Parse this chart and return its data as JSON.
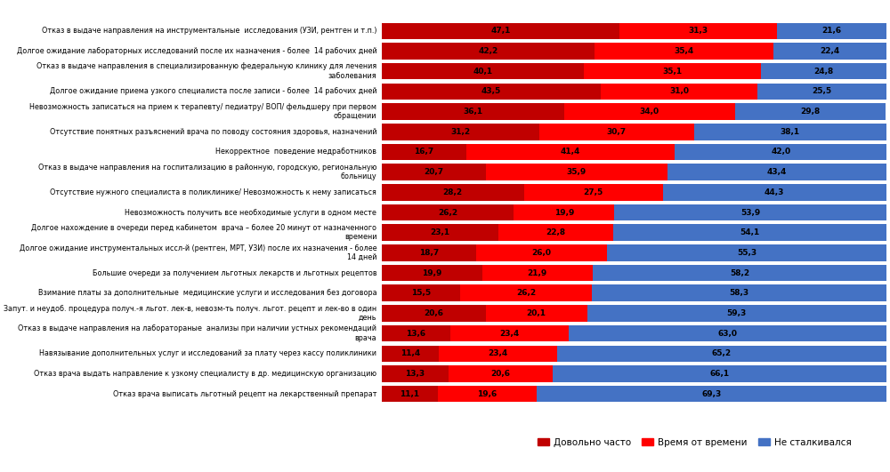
{
  "categories": [
    "Отказ в выдаче направления на инструментальные  исследования (УЗИ, рентген и т.п.)",
    "Долгое ожидание лабораторных исследований после их назначения - более  14 рабочих дней",
    "Отказ в выдаче направления в специализированную федеральную клинику для лечения\nзаболевания",
    "Долгое ожидание приема узкого специалиста после записи - более  14 рабочих дней",
    "Невозможность записаться на прием к терапевту/ педиатру/ ВОП/ фельдшеру при первом\nобращении",
    "Отсутствие понятных разъяснений врача по поводу состояния здоровья, назначений",
    "Некорректное  поведение медработников",
    "Отказ в выдаче направления на госпитализацию в районную, городскую, региональную\nбольницу",
    "Отсутствие нужного специалиста в поликлинике/ Невозможность к нему записаться",
    "Невозможность получить все необходимые услуги в одном месте",
    "Долгое нахождение в очереди перед кабинетом  врача – более 20 минут от назначенного\nвремени",
    "Долгое ожидание инструментальных иссл-й (рентген, МРТ, УЗИ) после их назначения - более\n14 дней",
    "Большие очереди за получением льготных лекарств и льготных рецептов",
    "Взимание платы за дополнительные  медицинские услуги и исследования без договора",
    "Запут. и неудоб. процедура получ.-я льгот. лек-в, невозм-ть получ. льгот. рецепт и лек-во в один\nдень",
    "Отказ в выдаче направления на лаборатораные  анализы при наличии устных рекомендаций\nврача",
    "Навязывание дополнительных услуг и исследований за плату через кассу поликлиники",
    "Отказ врача выдать направление к узкому специалисту в др. медицинскую организацию",
    "Отказ врача выписать льготный рецепт на лекарственный препарат"
  ],
  "довольно_часто": [
    47.1,
    42.2,
    40.1,
    43.5,
    36.1,
    31.2,
    16.7,
    20.7,
    28.2,
    26.2,
    23.1,
    18.7,
    19.9,
    15.5,
    20.6,
    13.6,
    11.4,
    13.3,
    11.1
  ],
  "время_от_времени": [
    31.3,
    35.4,
    35.1,
    31.0,
    34.0,
    30.7,
    41.4,
    35.9,
    27.5,
    19.9,
    22.8,
    26.0,
    21.9,
    26.2,
    20.1,
    23.4,
    23.4,
    20.6,
    19.6
  ],
  "не_сталкивался": [
    21.6,
    22.4,
    24.8,
    25.5,
    29.8,
    38.1,
    42.0,
    43.4,
    44.3,
    53.9,
    54.1,
    55.3,
    58.2,
    58.3,
    59.3,
    63.0,
    65.2,
    66.1,
    69.3
  ],
  "color_часто": "#c00000",
  "color_время": "#ff0000",
  "color_не": "#4472c4",
  "legend_labels": [
    "Довольно часто",
    "Время от времени",
    "Не сталкивался"
  ],
  "bar_height": 0.82,
  "figsize": [
    10.0,
    5.31
  ],
  "dpi": 100,
  "category_fontsize": 5.8,
  "value_fontsize": 6.5,
  "value_color": "#000000"
}
